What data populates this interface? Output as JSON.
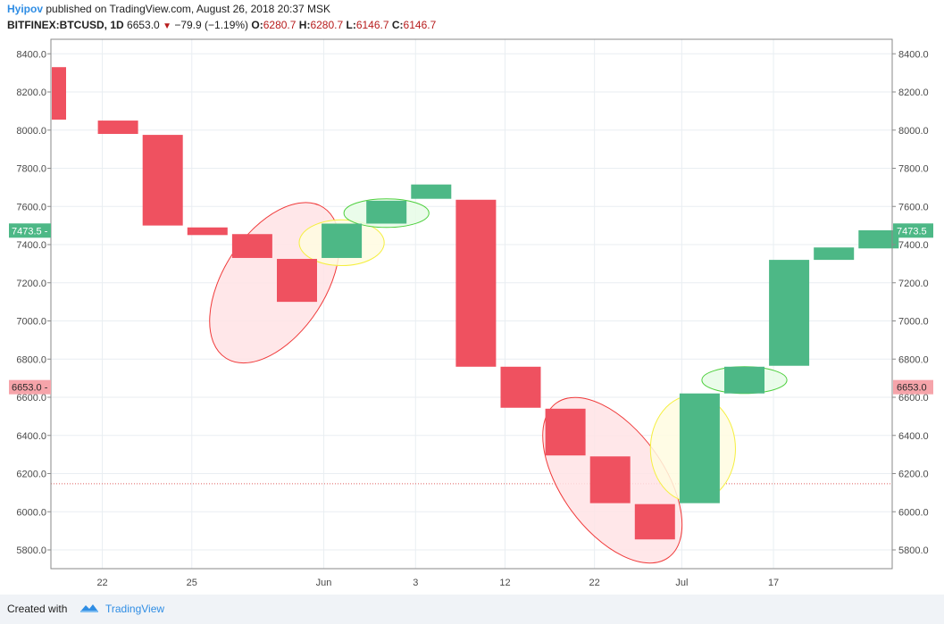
{
  "header": {
    "author": "Hyipov",
    "published": "published on TradingView.com, August 26, 2018 20:37 MSK",
    "symbol": "BITFINEX:BTCUSD, 1D",
    "last": "6653.0",
    "change": "−79.9 (−1.19%)",
    "o_label": "O:",
    "o_value": "6280.7",
    "h_label": "H:",
    "h_value": "6280.7",
    "l_label": "L:",
    "l_value": "6146.7",
    "c_label": "C:",
    "c_value": "6146.7"
  },
  "footer": {
    "created_with": "Created with",
    "brand": "TradingView"
  },
  "colors": {
    "up": "#4db886",
    "down": "#ef5160",
    "grid": "#e9eef2",
    "axis_text": "#4a4a4a",
    "ellipse_red": "#f03a3a",
    "ellipse_red_fill": "#ffe3e5",
    "ellipse_yellow": "#f5ef40",
    "ellipse_yellow_fill": "#fffbe0",
    "ellipse_green": "#4ccf3c",
    "ellipse_green_fill": "#e6fbe6"
  },
  "chart_data": {
    "type": "candlestick-bodies",
    "title": "BITFINEX:BTCUSD, 1D",
    "ylim": [
      5700,
      8480
    ],
    "y_ticks": [
      "5800.0",
      "6000.0",
      "6200.0",
      "6400.0",
      "6600.0",
      "6800.0",
      "7000.0",
      "7200.0",
      "7400.0",
      "7600.0",
      "7800.0",
      "8000.0",
      "8200.0",
      "8400.0"
    ],
    "x_ticks": [
      {
        "label": "22",
        "index": 0.65
      },
      {
        "label": "25",
        "index": 2.65
      },
      {
        "label": "Jun",
        "index": 5.6
      },
      {
        "label": "3",
        "index": 7.65
      },
      {
        "label": "12",
        "index": 9.65
      },
      {
        "label": "22",
        "index": 11.65
      },
      {
        "label": "Jul",
        "index": 13.6
      },
      {
        "label": "17",
        "index": 15.65
      }
    ],
    "candles": [
      {
        "open": 8330,
        "close": 8055,
        "dir": "down",
        "narrow": true
      },
      {
        "open": 8050,
        "close": 7980,
        "dir": "down"
      },
      {
        "open": 7975,
        "close": 7500,
        "dir": "down"
      },
      {
        "open": 7490,
        "close": 7450,
        "dir": "down"
      },
      {
        "open": 7455,
        "close": 7330,
        "dir": "down"
      },
      {
        "open": 7325,
        "close": 7100,
        "dir": "down"
      },
      {
        "open": 7330,
        "close": 7510,
        "dir": "up"
      },
      {
        "open": 7510,
        "close": 7630,
        "dir": "up"
      },
      {
        "open": 7640,
        "close": 7715,
        "dir": "up"
      },
      {
        "open": 7635,
        "close": 6760,
        "dir": "down"
      },
      {
        "open": 6760,
        "close": 6545,
        "dir": "down"
      },
      {
        "open": 6540,
        "close": 6295,
        "dir": "down"
      },
      {
        "open": 6290,
        "close": 6045,
        "dir": "down"
      },
      {
        "open": 6040,
        "close": 5855,
        "dir": "down"
      },
      {
        "open": 6045,
        "close": 6620,
        "dir": "up"
      },
      {
        "open": 6620,
        "close": 6760,
        "dir": "up"
      },
      {
        "open": 6765,
        "close": 7320,
        "dir": "up"
      },
      {
        "open": 7320,
        "close": 7385,
        "dir": "up"
      },
      {
        "open": 7380,
        "close": 7475,
        "dir": "up"
      }
    ],
    "ellipses": [
      {
        "cx": 4.5,
        "cy": 7200,
        "rx": 1.2,
        "ry": 470,
        "rotate": 33,
        "kind": "red"
      },
      {
        "cx": 12.05,
        "cy": 6165,
        "rx": 1.2,
        "ry": 500,
        "rotate": -36,
        "kind": "red"
      },
      {
        "cx": 6.0,
        "cy": 7410,
        "rx": 1.0,
        "ry": 120,
        "rotate": 0,
        "kind": "yellow"
      },
      {
        "cx": 13.85,
        "cy": 6330,
        "rx": 1.0,
        "ry": 280,
        "rotate": 0,
        "kind": "yellow"
      },
      {
        "cx": 7.0,
        "cy": 7565,
        "rx": 1.0,
        "ry": 75,
        "rotate": 0,
        "kind": "green"
      },
      {
        "cx": 15.0,
        "cy": 6690,
        "rx": 1.0,
        "ry": 70,
        "rotate": 0,
        "kind": "green"
      }
    ],
    "price_labels": [
      {
        "text": "7473.5",
        "value": 7473.5,
        "kind": "up"
      },
      {
        "text": "6653.0",
        "value": 6653.0,
        "kind": "down"
      }
    ],
    "low_line": 6146.7
  }
}
